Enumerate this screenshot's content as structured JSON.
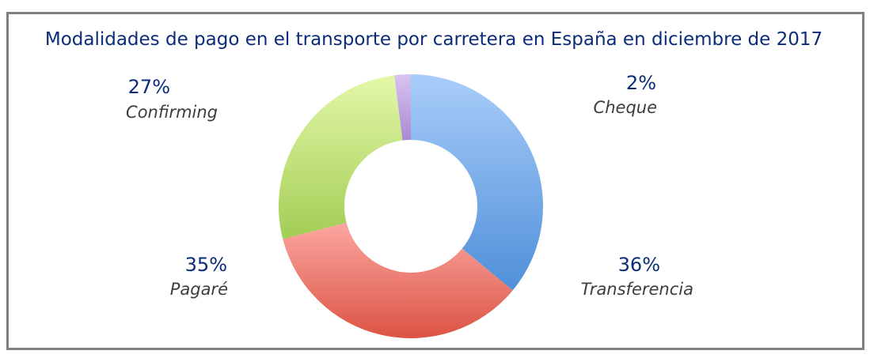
{
  "chart_data": {
    "type": "pie",
    "title": "Modalidades de pago en el transporte por carretera en España en diciembre de 2017",
    "donut": true,
    "slices": [
      {
        "label": "Transferencia",
        "value": 36,
        "display": "36%",
        "color_top": "#a9cdfa",
        "color_bottom": "#4f8fd8"
      },
      {
        "label": "Pagaré",
        "value": 35,
        "display": "35%",
        "color_top": "#fba6a0",
        "color_bottom": "#dc5445"
      },
      {
        "label": "Confirming",
        "value": 27,
        "display": "27%",
        "color_top": "#e3f8a8",
        "color_bottom": "#a3cd55"
      },
      {
        "label": "Cheque",
        "value": 2,
        "display": "2%",
        "color_top": "#d9c3f0",
        "color_bottom": "#a98ad2"
      }
    ],
    "start": "12 o'clock",
    "direction": "clockwise"
  }
}
